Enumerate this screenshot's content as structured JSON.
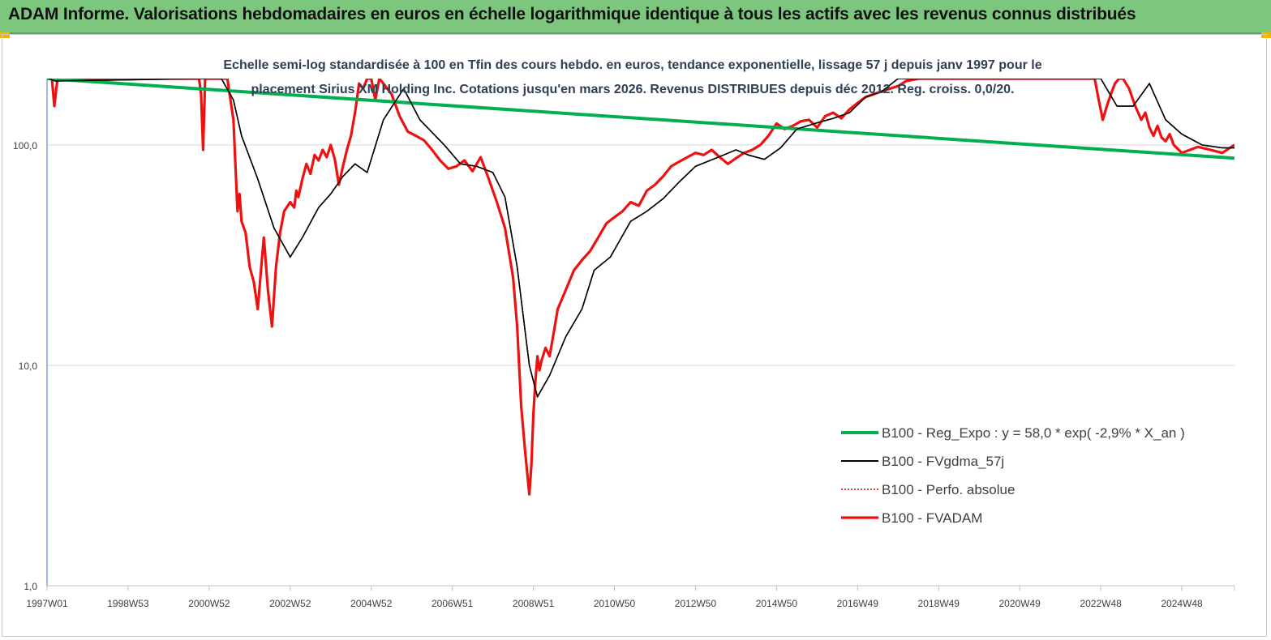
{
  "header": {
    "title": "ADAM Informe. Valorisations hebdomadaires en euros en échelle logarithmique identique à tous les actifs avec les revenus connus distribués"
  },
  "colors": {
    "banner": "#7dc67e",
    "reg_expo": "#00b050",
    "fvgdma": "#000000",
    "perfo": "#e00000",
    "fvadam": "#ee1111",
    "corner_accent": "#f2b600"
  },
  "chart_data": {
    "type": "line",
    "subtitle_line1": "Echelle semi-log standardisée à 100 en Tfin des cours hebdo. en euros, tendance exponentielle, lissage 57 j depuis janv 1997 pour le",
    "subtitle_line2": "placement Sirius XM Holding Inc. Cotations jusqu'en mars 2026. Revenus DISTRIBUES depuis déc 2012. Reg. croiss. 0,0/20.",
    "y_scale": "log",
    "ylim": [
      1,
      200
    ],
    "y_ticks": [
      {
        "value": 1,
        "label": "1,0"
      },
      {
        "value": 10,
        "label": "10,0"
      },
      {
        "value": 100,
        "label": "100,0"
      }
    ],
    "xlim": [
      1997.0,
      2026.3
    ],
    "x_ticks": [
      {
        "value": 1997.0,
        "label": "1997W01"
      },
      {
        "value": 1999.0,
        "label": "1998W53"
      },
      {
        "value": 2001.0,
        "label": "2000W52"
      },
      {
        "value": 2003.0,
        "label": "2002W52"
      },
      {
        "value": 2005.0,
        "label": "2004W52"
      },
      {
        "value": 2007.0,
        "label": "2006W51"
      },
      {
        "value": 2009.0,
        "label": "2008W51"
      },
      {
        "value": 2011.0,
        "label": "2010W50"
      },
      {
        "value": 2013.0,
        "label": "2012W50"
      },
      {
        "value": 2015.0,
        "label": "2014W50"
      },
      {
        "value": 2017.0,
        "label": "2016W49"
      },
      {
        "value": 2019.0,
        "label": "2018W49"
      },
      {
        "value": 2021.0,
        "label": "2020W49"
      },
      {
        "value": 2023.0,
        "label": "2022W48"
      },
      {
        "value": 2025.0,
        "label": "2024W48"
      }
    ],
    "grid": "horizontal",
    "legend_position": "bottom-right",
    "series": [
      {
        "name": "B100 - Reg_Expo : y = 58,0 * exp( -2,9% *  X_an )",
        "style": "solid-thick",
        "color_key": "reg_expo",
        "x": [
          1997.0,
          2026.3
        ],
        "y": [
          200,
          87
        ]
      },
      {
        "name": "B100 - FVgdma_57j",
        "style": "solid-thin",
        "color_key": "fvgdma",
        "x": [
          1997.05,
          1997.2,
          2000.8,
          2001.3,
          2001.6,
          2001.8,
          2002.2,
          2002.6,
          2003.0,
          2003.3,
          2003.7,
          2004.0,
          2004.3,
          2004.6,
          2004.9,
          2005.3,
          2005.8,
          2006.2,
          2006.8,
          2007.2,
          2007.6,
          2008.0,
          2008.3,
          2008.6,
          2008.9,
          2009.1,
          2009.4,
          2009.8,
          2010.2,
          2010.5,
          2010.9,
          2011.4,
          2011.8,
          2012.2,
          2012.6,
          2013.0,
          2013.5,
          2014.0,
          2014.3,
          2014.7,
          2015.1,
          2015.5,
          2016.0,
          2016.4,
          2016.8,
          2017.2,
          2017.6,
          2018.0,
          2019.0,
          2020.0,
          2021.0,
          2022.0,
          2022.6,
          2023.0,
          2023.4,
          2023.8,
          2024.2,
          2024.6,
          2025.0,
          2025.5,
          2026.0,
          2026.3
        ],
        "y": [
          200,
          195,
          200,
          200,
          160,
          110,
          70,
          42,
          31,
          38,
          52,
          60,
          72,
          82,
          75,
          130,
          180,
          130,
          100,
          82,
          80,
          75,
          58,
          28,
          10,
          7.2,
          9.0,
          13.5,
          18,
          27,
          31,
          45,
          50,
          57,
          68,
          80,
          87,
          95,
          90,
          86,
          97,
          118,
          126,
          132,
          140,
          165,
          175,
          200,
          200,
          200,
          200,
          200,
          200,
          200,
          150,
          150,
          190,
          130,
          112,
          100,
          97,
          97
        ]
      },
      {
        "name": "B100 - Perfo. absolue",
        "style": "dotted",
        "color_key": "perfo",
        "x": [],
        "y": []
      },
      {
        "name": "B100 - FVADAM",
        "style": "solid-thick",
        "color_key": "fvadam",
        "x": [
          1997.0,
          1997.05,
          1997.12,
          1997.18,
          1997.22,
          1997.26,
          1997.3,
          1997.35,
          2000.75,
          2000.8,
          2000.85,
          2000.9,
          2001.0,
          2001.1,
          2001.3,
          2001.45,
          2001.6,
          2001.7,
          2001.75,
          2001.8,
          2001.9,
          2002.0,
          2002.1,
          2002.2,
          2002.3,
          2002.35,
          2002.45,
          2002.55,
          2002.65,
          2002.75,
          2002.85,
          2003.0,
          2003.1,
          2003.15,
          2003.2,
          2003.3,
          2003.4,
          2003.5,
          2003.6,
          2003.7,
          2003.8,
          2003.9,
          2004.0,
          2004.1,
          2004.2,
          2004.3,
          2004.4,
          2004.5,
          2004.6,
          2004.7,
          2004.8,
          2004.9,
          2005.0,
          2005.1,
          2005.2,
          2005.3,
          2005.5,
          2005.7,
          2005.9,
          2006.1,
          2006.3,
          2006.5,
          2006.7,
          2006.9,
          2007.1,
          2007.3,
          2007.5,
          2007.7,
          2007.9,
          2008.1,
          2008.3,
          2008.5,
          2008.6,
          2008.7,
          2008.8,
          2008.9,
          2008.95,
          2009.0,
          2009.05,
          2009.1,
          2009.15,
          2009.2,
          2009.3,
          2009.4,
          2009.5,
          2009.6,
          2009.8,
          2010.0,
          2010.2,
          2010.4,
          2010.6,
          2010.8,
          2011.0,
          2011.2,
          2011.4,
          2011.6,
          2011.8,
          2012.0,
          2012.2,
          2012.4,
          2012.6,
          2012.8,
          2013.0,
          2013.2,
          2013.4,
          2013.6,
          2013.8,
          2014.0,
          2014.2,
          2014.4,
          2014.6,
          2014.8,
          2015.0,
          2015.2,
          2015.4,
          2015.6,
          2015.8,
          2016.0,
          2016.2,
          2016.4,
          2016.6,
          2016.8,
          2017.0,
          2017.2,
          2017.4,
          2017.6,
          2017.8,
          2018.0,
          2018.2,
          2018.5,
          2019.0,
          2020.0,
          2021.0,
          2022.0,
          2022.8,
          2022.85,
          2022.95,
          2023.05,
          2023.15,
          2023.25,
          2023.35,
          2023.45,
          2023.55,
          2023.7,
          2023.85,
          2024.0,
          2024.1,
          2024.2,
          2024.3,
          2024.4,
          2024.5,
          2024.6,
          2024.7,
          2024.8,
          2024.9,
          2025.0,
          2025.2,
          2025.4,
          2025.6,
          2025.8,
          2026.0,
          2026.15,
          2026.3
        ],
        "y": [
          200,
          200,
          200,
          150,
          175,
          200,
          200,
          200,
          200,
          170,
          95,
          200,
          200,
          200,
          200,
          200,
          130,
          50,
          60,
          45,
          40,
          28,
          24,
          18,
          30,
          38,
          22,
          15,
          28,
          40,
          50,
          55,
          52,
          62,
          58,
          70,
          82,
          74,
          90,
          85,
          95,
          88,
          100,
          86,
          66,
          80,
          95,
          110,
          140,
          190,
          180,
          200,
          200,
          160,
          200,
          190,
          170,
          135,
          115,
          110,
          105,
          95,
          85,
          78,
          80,
          85,
          76,
          88,
          70,
          55,
          42,
          25,
          15,
          6.5,
          4.0,
          2.6,
          3.5,
          6.0,
          8.5,
          11.0,
          9.5,
          10.5,
          12.0,
          11.0,
          14.0,
          18.0,
          22.0,
          27.0,
          30.0,
          33.0,
          38.0,
          44.0,
          47.0,
          50.0,
          55.0,
          53.0,
          62.0,
          66.0,
          72.0,
          80.0,
          84.0,
          88.0,
          92.0,
          90.0,
          95.0,
          88.0,
          82.0,
          87.0,
          92.0,
          95.0,
          100.0,
          110.0,
          125.0,
          118.0,
          122.0,
          128.0,
          130.0,
          120.0,
          135.0,
          140.0,
          132.0,
          145.0,
          155.0,
          165.0,
          170.0,
          175.0,
          180.0,
          185.0,
          195.0,
          200,
          200,
          200,
          200,
          200,
          200,
          200,
          160,
          130,
          150,
          170,
          190,
          200,
          200,
          180,
          150,
          130,
          140,
          120,
          110,
          122,
          108,
          104,
          112,
          100,
          96,
          92,
          95,
          98,
          96,
          94,
          92,
          96,
          100
        ]
      }
    ]
  }
}
